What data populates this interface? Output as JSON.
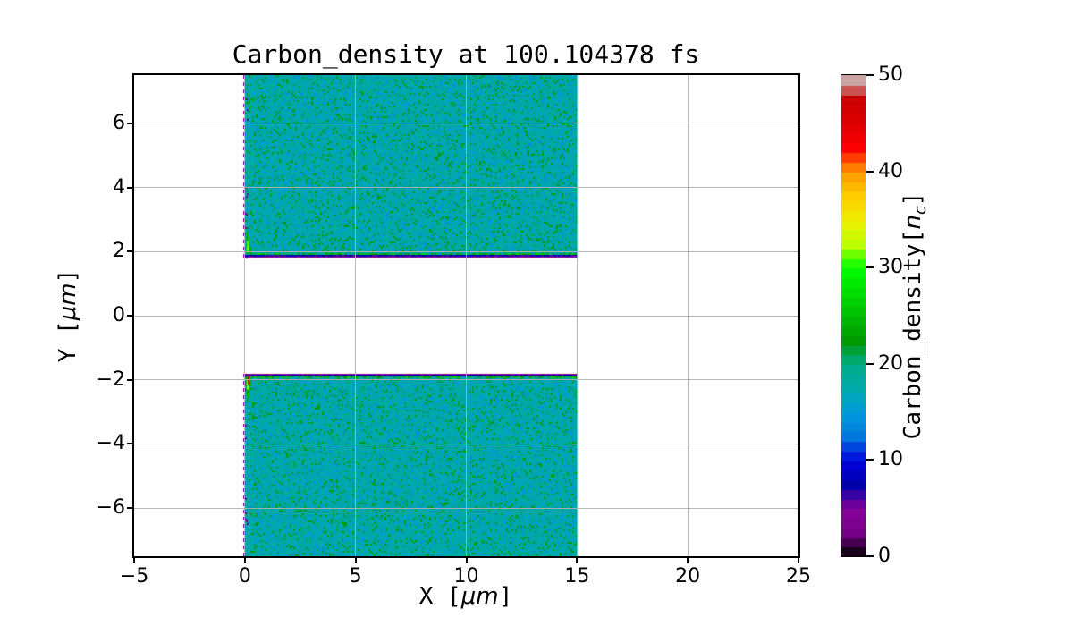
{
  "chart_data": {
    "type": "heatmap",
    "title": "Carbon_density at 100.104378 fs",
    "time_fs": "100.104378",
    "xlabel": "X [μm]",
    "ylabel": "Y [μm]",
    "colorbar_label": "Carbon_density[n_c]",
    "xlabel_parts": {
      "prefix": "X [",
      "italic": "μm",
      "suffix": "]"
    },
    "ylabel_parts": {
      "prefix": "Y [",
      "italic": "μm",
      "suffix": "]"
    },
    "colorbar_label_parts": {
      "prefix": "Carbon_density[",
      "italic": "n",
      "subscript": "c",
      "suffix": "]"
    },
    "xlim": [
      -5,
      25
    ],
    "ylim": [
      -7.5,
      7.5
    ],
    "clim": [
      0,
      50
    ],
    "grid": true,
    "grid_color": "#b0b0b0",
    "background": "#ffffff",
    "colormap": "nipy_spectral",
    "colorbar_bands": 50,
    "colormap_stops": [
      [
        0.0,
        0,
        0,
        0
      ],
      [
        0.05,
        119,
        0,
        136
      ],
      [
        0.1,
        136,
        0,
        153
      ],
      [
        0.15,
        0,
        0,
        170
      ],
      [
        0.2,
        0,
        0,
        221
      ],
      [
        0.25,
        0,
        119,
        221
      ],
      [
        0.3,
        0,
        153,
        221
      ],
      [
        0.35,
        0,
        170,
        170
      ],
      [
        0.4,
        0,
        170,
        136
      ],
      [
        0.45,
        0,
        153,
        0
      ],
      [
        0.5,
        0,
        187,
        0
      ],
      [
        0.55,
        0,
        221,
        0
      ],
      [
        0.6,
        0,
        255,
        0
      ],
      [
        0.65,
        187,
        255,
        0
      ],
      [
        0.7,
        238,
        238,
        0
      ],
      [
        0.75,
        255,
        204,
        0
      ],
      [
        0.8,
        255,
        153,
        0
      ],
      [
        0.85,
        255,
        0,
        0
      ],
      [
        0.9,
        221,
        0,
        0
      ],
      [
        0.95,
        204,
        0,
        0
      ],
      [
        1.0,
        204,
        204,
        204
      ]
    ],
    "xticks": [
      {
        "value": -5,
        "label": "−5"
      },
      {
        "value": 0,
        "label": "0"
      },
      {
        "value": 5,
        "label": "5"
      },
      {
        "value": 10,
        "label": "10"
      },
      {
        "value": 15,
        "label": "15"
      },
      {
        "value": 20,
        "label": "20"
      },
      {
        "value": 25,
        "label": "25"
      }
    ],
    "yticks": [
      {
        "value": 6,
        "label": "6"
      },
      {
        "value": 4,
        "label": "4"
      },
      {
        "value": 2,
        "label": "2"
      },
      {
        "value": 0,
        "label": "0"
      },
      {
        "value": -2,
        "label": "−2"
      },
      {
        "value": -4,
        "label": "−4"
      },
      {
        "value": -6,
        "label": "−6"
      }
    ],
    "colorbar_ticks": [
      {
        "value": 50,
        "label": "50"
      },
      {
        "value": 40,
        "label": "40"
      },
      {
        "value": 30,
        "label": "30"
      },
      {
        "value": 20,
        "label": "20"
      },
      {
        "value": 10,
        "label": "10"
      },
      {
        "value": 0,
        "label": "0"
      }
    ],
    "slabs": [
      {
        "x_range": [
          0,
          15
        ],
        "y_range": [
          1.8,
          7.5
        ],
        "inner_edge": "bottom",
        "mean_density_nc": 17.5
      },
      {
        "x_range": [
          0,
          15
        ],
        "y_range": [
          -7.5,
          -1.8
        ],
        "inner_edge": "top",
        "mean_density_nc": 17.5
      }
    ],
    "features": {
      "body_noise_density_nc": [
        14,
        23
      ],
      "inner_edge_density_nc": [
        3,
        9
      ],
      "left_edge_dashed_density_nc": 4.5,
      "corner_hotspot_density_nc": [
        22,
        34
      ],
      "corner_red_spike_density_nc": 43
    }
  }
}
